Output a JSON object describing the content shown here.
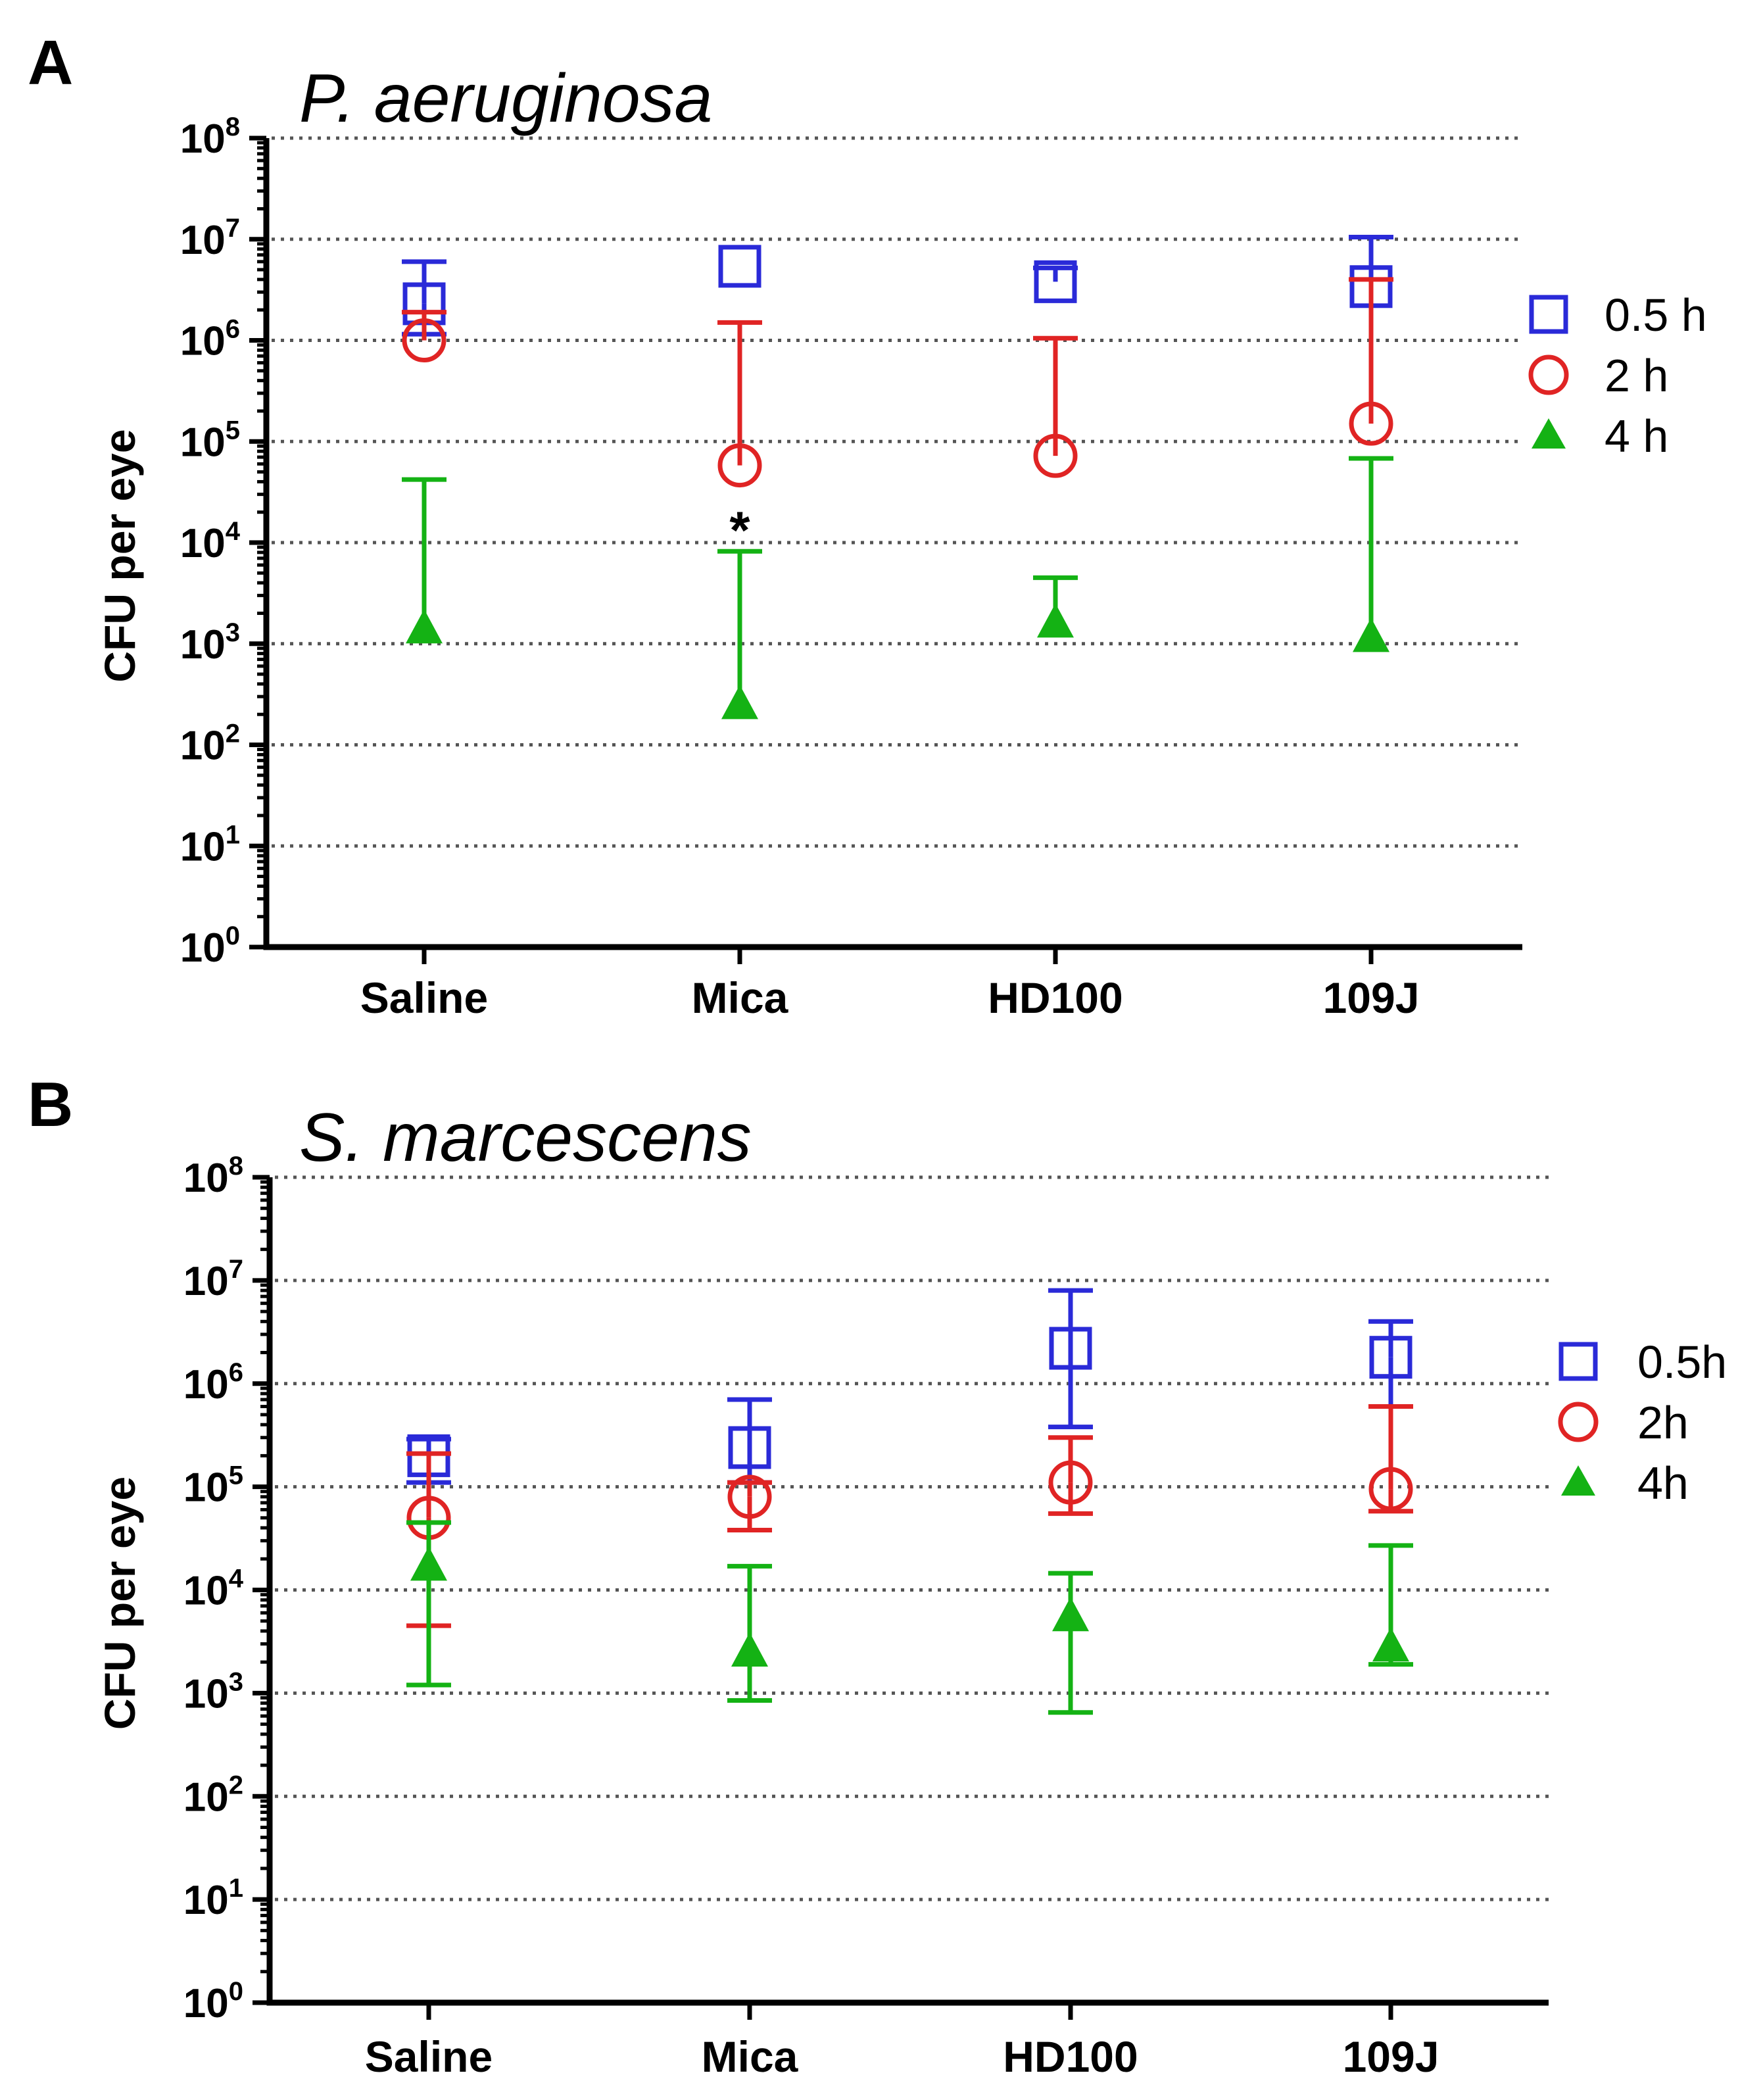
{
  "chart_data": [
    {
      "panel": "A",
      "type": "scatter",
      "title": "P. aeruginosa",
      "xlabel": "",
      "ylabel": "CFU per eye",
      "yscale": "log",
      "ylim": [
        1,
        100000000
      ],
      "yticks": [
        {
          "base": "10",
          "exp": "0"
        },
        {
          "base": "10",
          "exp": "1"
        },
        {
          "base": "10",
          "exp": "2"
        },
        {
          "base": "10",
          "exp": "3"
        },
        {
          "base": "10",
          "exp": "4"
        },
        {
          "base": "10",
          "exp": "5"
        },
        {
          "base": "10",
          "exp": "6"
        },
        {
          "base": "10",
          "exp": "7"
        },
        {
          "base": "10",
          "exp": "8"
        }
      ],
      "grid": true,
      "legend_position": "right",
      "categories": [
        "Saline",
        "Mica",
        "HD100",
        "109J"
      ],
      "series": [
        {
          "name": "0.5 h",
          "marker": "square",
          "color": "#2a2ad8",
          "values": [
            2300000,
            5400000,
            3800000,
            3400000
          ],
          "err_upper": [
            6000000,
            null,
            5200000,
            10500000
          ],
          "err_lower": [
            1150000,
            null,
            null,
            null
          ]
        },
        {
          "name": "2 h",
          "marker": "circle",
          "color": "#e02424",
          "values": [
            1000000,
            58000,
            72000,
            150000
          ],
          "err_upper": [
            1900000,
            1500000,
            1050000,
            4000000
          ],
          "err_lower": [
            null,
            null,
            null,
            null
          ]
        },
        {
          "name": "4 h",
          "marker": "triangle",
          "color": "#14b214",
          "values": [
            1400,
            250,
            1600,
            1150
          ],
          "err_upper": [
            42000,
            8200,
            4500,
            68000
          ],
          "err_lower": [
            null,
            null,
            null,
            null
          ]
        }
      ],
      "annotations": [
        {
          "text": "*",
          "category": "Mica",
          "value": 16000
        }
      ]
    },
    {
      "panel": "B",
      "type": "scatter",
      "title": "S. marcescens",
      "xlabel": "",
      "ylabel": "CFU per eye",
      "yscale": "log",
      "ylim": [
        1,
        100000000
      ],
      "yticks": [
        {
          "base": "10",
          "exp": "0"
        },
        {
          "base": "10",
          "exp": "1"
        },
        {
          "base": "10",
          "exp": "2"
        },
        {
          "base": "10",
          "exp": "3"
        },
        {
          "base": "10",
          "exp": "4"
        },
        {
          "base": "10",
          "exp": "5"
        },
        {
          "base": "10",
          "exp": "6"
        },
        {
          "base": "10",
          "exp": "7"
        },
        {
          "base": "10",
          "exp": "8"
        }
      ],
      "grid": true,
      "legend_position": "right",
      "categories": [
        "Saline",
        "Mica",
        "HD100",
        "109J"
      ],
      "series": [
        {
          "name": "0.5h",
          "marker": "square",
          "color": "#2a2ad8",
          "values": [
            200000,
            240000,
            2200000,
            1800000
          ],
          "err_upper": [
            290000,
            700000,
            8000000,
            4000000
          ],
          "err_lower": [
            110000,
            110000,
            380000,
            600000
          ]
        },
        {
          "name": "2h",
          "marker": "circle",
          "color": "#e02424",
          "values": [
            50000,
            80000,
            110000,
            95000
          ],
          "err_upper": [
            210000,
            110000,
            300000,
            600000
          ],
          "err_lower": [
            4500,
            38000,
            55000,
            58000
          ]
        },
        {
          "name": "4h",
          "marker": "triangle",
          "color": "#14b214",
          "values": [
            17000,
            2500,
            5500,
            2800
          ],
          "err_upper": [
            45000,
            17000,
            14500,
            27000
          ],
          "err_lower": [
            1200,
            850,
            650,
            1900
          ]
        }
      ],
      "annotations": []
    }
  ]
}
